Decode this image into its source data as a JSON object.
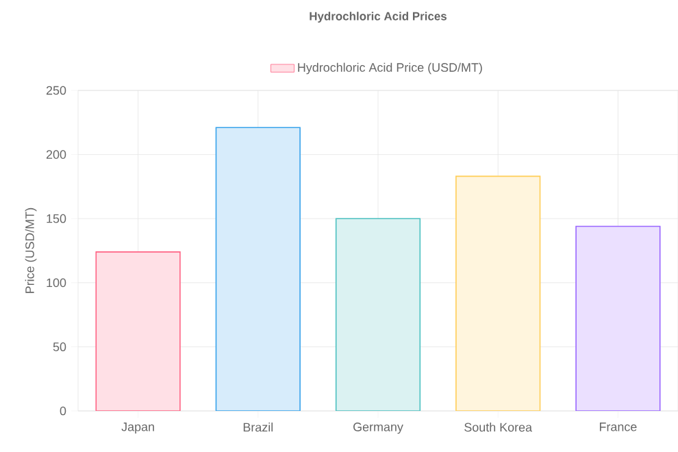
{
  "chart_data": {
    "type": "bar",
    "title": "Hydrochloric Acid Prices",
    "ylabel": "Price (USD/MT)",
    "categories": [
      "Japan",
      "Brazil",
      "Germany",
      "South Korea",
      "France"
    ],
    "series": [
      {
        "name": "Hydrochloric Acid Price (USD/MT)",
        "values": [
          124,
          221,
          150,
          183,
          144
        ],
        "colors": [
          "#ff6384",
          "#36a2eb",
          "#4bc0c0",
          "#ffcd56",
          "#9966ff"
        ]
      }
    ],
    "ylim": [
      0,
      250
    ],
    "yticks": [
      0,
      50,
      100,
      150,
      200,
      250
    ],
    "grid": true,
    "legend": "top"
  }
}
